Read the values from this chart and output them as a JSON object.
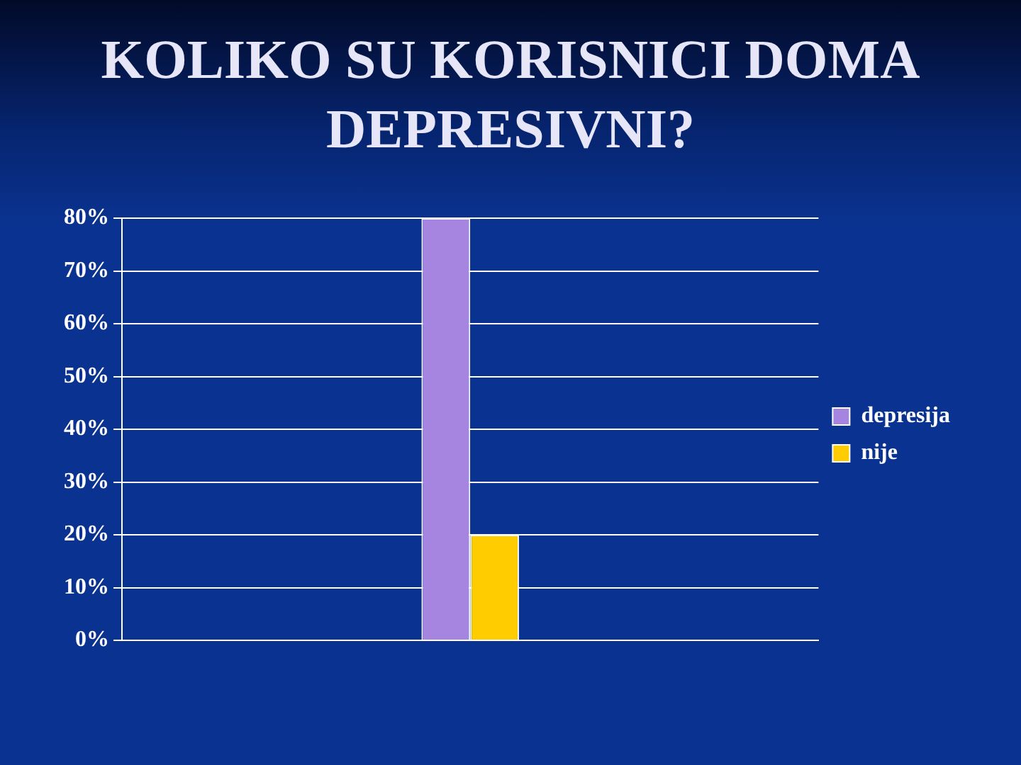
{
  "chart_data": {
    "type": "bar",
    "title": "KOLIKO SU KORISNICI DOMA DEPRESIVNI?",
    "categories": [
      null
    ],
    "series": [
      {
        "name": "depresija",
        "color": "#a585e0",
        "values": [
          80
        ]
      },
      {
        "name": "nije",
        "color": "#ffcc00",
        "values": [
          20
        ]
      }
    ],
    "ylim": [
      0,
      80
    ],
    "yticks": [
      {
        "value": 0,
        "label": "0%"
      },
      {
        "value": 10,
        "label": "10%"
      },
      {
        "value": 20,
        "label": "20%"
      },
      {
        "value": 30,
        "label": "30%"
      },
      {
        "value": 40,
        "label": "40%"
      },
      {
        "value": 50,
        "label": "50%"
      },
      {
        "value": 60,
        "label": "60%"
      },
      {
        "value": 70,
        "label": "70%"
      },
      {
        "value": 80,
        "label": "80%"
      }
    ],
    "grid": "y",
    "legend": "right",
    "tick_labels": "y"
  }
}
